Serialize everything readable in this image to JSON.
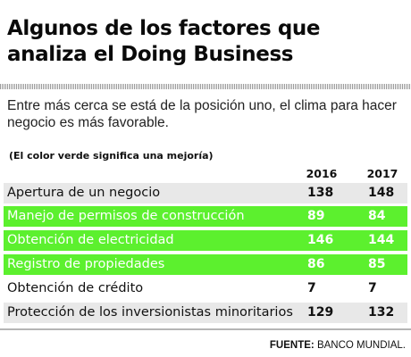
{
  "title": "Algunos de los factores que analiza el Doing Business",
  "intro": "Entre más cerca se está de la posición uno, el clima para hacer negocio es más favorable.",
  "note": "(El color verde significa una mejoría)",
  "years": [
    "2016",
    "2017"
  ],
  "colors": {
    "improved": "#5cf02e",
    "neutral": "#e8e8e8",
    "neutral_alt": "#ffffff"
  },
  "rows": [
    {
      "label": "Apertura de un negocio",
      "v2016": "138",
      "v2017": "148",
      "status": "gray"
    },
    {
      "label": "Manejo de permisos de construcción",
      "v2016": "89",
      "v2017": "84",
      "status": "green"
    },
    {
      "label": "Obtención de electricidad",
      "v2016": "146",
      "v2017": "144",
      "status": "green"
    },
    {
      "label": "Registro de propiedades",
      "v2016": "86",
      "v2017": "85",
      "status": "green"
    },
    {
      "label": "Obtención de crédito",
      "v2016": "7",
      "v2017": "7",
      "status": "white"
    },
    {
      "label": "Protección de los inversionistas minoritarios",
      "v2016": "129",
      "v2017": "132",
      "status": "gray"
    }
  ],
  "source": {
    "label": "FUENTE:",
    "text": " BANCO MUNDIAL."
  }
}
